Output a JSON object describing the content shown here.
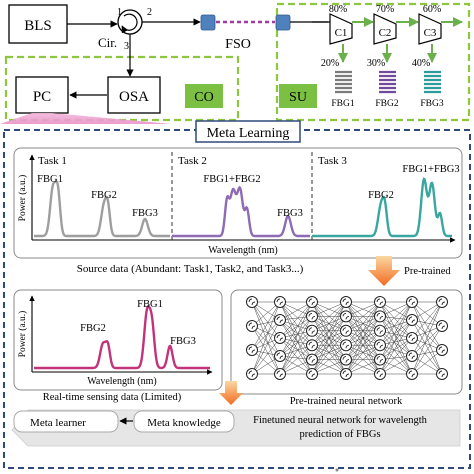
{
  "system": {
    "bls": "BLS",
    "circulator": "Cir.",
    "port1": "1",
    "port2": "2",
    "port3": "3",
    "osa": "OSA",
    "pc": "PC",
    "co": "CO",
    "fso": "FSO",
    "su": "SU",
    "couplers": [
      {
        "name": "C1",
        "pass": "80%",
        "tap": "20%",
        "fbg": "FBG1"
      },
      {
        "name": "C2",
        "pass": "70%",
        "tap": "30%",
        "fbg": "FBG2"
      },
      {
        "name": "C3",
        "pass": "60%",
        "tap": "40%",
        "fbg": "FBG3"
      }
    ],
    "colors": {
      "dashed_green": "#8dc63f",
      "label_green": "#7bc043",
      "pink": "#e991c8",
      "lens_blue": "#4f81bd",
      "fso_purple": "#a23c9b",
      "arrow_green": "#6ab04c",
      "fbg_colors": [
        "#7b7b7b",
        "#6f4c9b",
        "#2e9c9c"
      ]
    }
  },
  "meta": {
    "title": "Meta Learning",
    "tasks": [
      {
        "label": "Task 1",
        "peaks": [
          "FBG1",
          "FBG2",
          "FBG3"
        ],
        "color": "#9e9e9e"
      },
      {
        "label": "Task 2",
        "peaks": [
          "FBG1+FBG2",
          "FBG3"
        ],
        "color": "#8e6bb5"
      },
      {
        "label": "Task 3",
        "peaks": [
          "FBG2",
          "FBG1+FBG3"
        ],
        "color": "#3aa6a0"
      }
    ],
    "y_axis": "Power (a.u.)",
    "x_axis": "Wavelength (nm)",
    "source_caption": "Source data (Abundant: Task1, Task2, and Task3...)",
    "pretrained_label": "Pre-trained",
    "realtime": {
      "peaks": [
        "FBG2",
        "FBG1",
        "FBG3"
      ],
      "y_axis": "Power (a.u.)",
      "x_axis": "Wavelength (nm)",
      "caption": "Real-time sensing data (Limited)",
      "color": "#c2337a"
    },
    "nn_caption": "Pre-trained neural network",
    "meta_learner": "Meta learner",
    "meta_knowledge": "Meta knowledge",
    "finetuned_line1": "Finetuned neural network for wavelength",
    "finetuned_line2": "prediction of FBGs"
  }
}
